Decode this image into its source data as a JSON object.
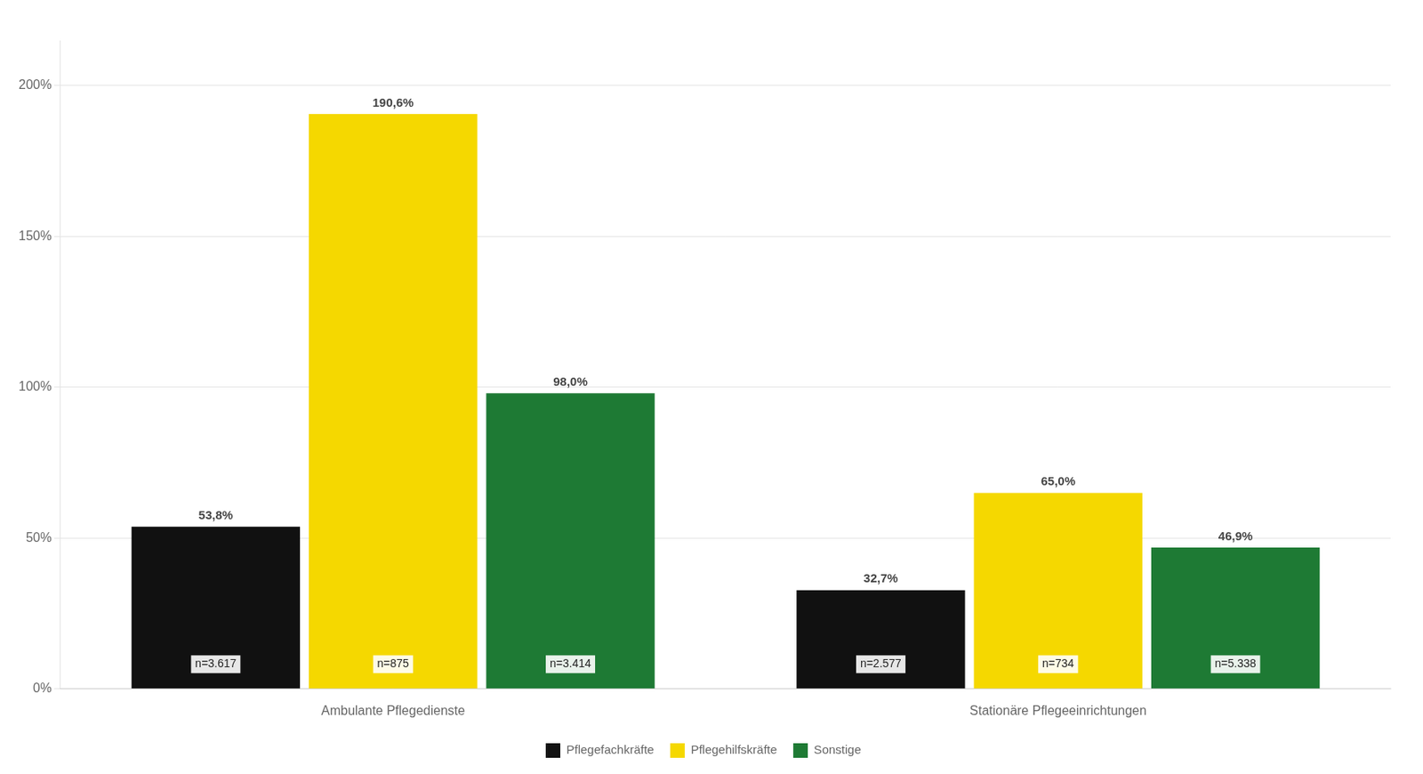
{
  "chart_data": {
    "type": "bar",
    "categories": [
      "Ambulante Pflegedienste",
      "Stationäre Pflegeeinrichtungen"
    ],
    "series": [
      {
        "name": "Pflegefachkräfte",
        "color": "#111111",
        "values": [
          53.8,
          32.7
        ],
        "value_labels": [
          "53,8%",
          "32,7%"
        ],
        "n_labels": [
          "n=3.617",
          "n=2.577"
        ]
      },
      {
        "name": "Pflegehilfskräfte",
        "color": "#f5d800",
        "values": [
          190.6,
          65.0
        ],
        "value_labels": [
          "190,6%",
          "65,0%"
        ],
        "n_labels": [
          "n=875",
          "n=734"
        ]
      },
      {
        "name": "Sonstige",
        "color": "#1e7a34",
        "values": [
          98.0,
          46.9
        ],
        "value_labels": [
          "98,0%",
          "46,9%"
        ],
        "n_labels": [
          "n=3.414",
          "n=5.338"
        ]
      }
    ],
    "ylim": [
      0,
      215
    ],
    "yticks": [
      {
        "value": 0,
        "label": "0%"
      },
      {
        "value": 50,
        "label": "50%"
      },
      {
        "value": 100,
        "label": "100%"
      },
      {
        "value": 150,
        "label": "150%"
      },
      {
        "value": 200,
        "label": "200%"
      }
    ],
    "grid": true,
    "legend": "bottom",
    "data_labels": true
  }
}
